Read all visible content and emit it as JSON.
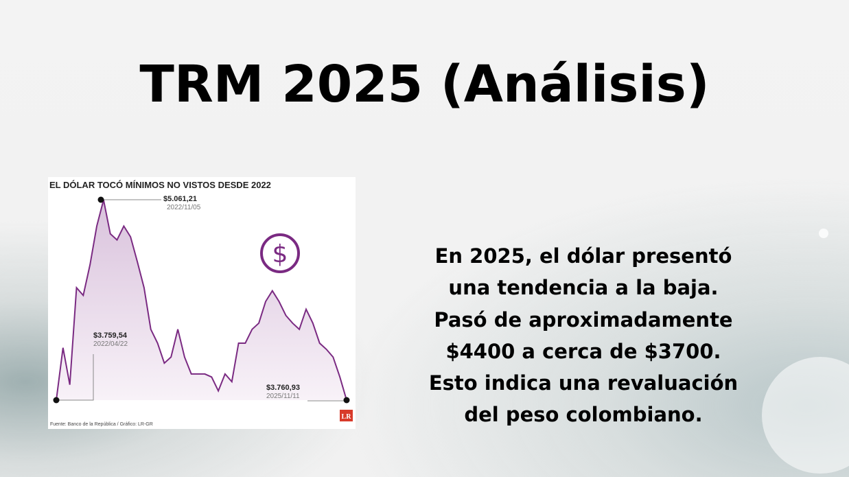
{
  "slide": {
    "title": "TRM 2025 (Análisis)",
    "body_lines": [
      "En 2025, el dólar presentó",
      "una tendencia a la baja.",
      "Pasó de aproximadamente",
      "$4400 a cerca de $3700.",
      "Esto indica una revaluación",
      "del peso colombiano."
    ]
  },
  "chart_data": {
    "type": "area",
    "title": "EL DÓLAR TOCÓ MÍNIMOS NO VISTOS DESDE 2022",
    "source": "Fuente: Banco de la República / Gráfico: LR-GR",
    "logo": "LR",
    "color": "#7a2a82",
    "grid": false,
    "ylim": [
      3700,
      5100
    ],
    "annotations": [
      {
        "value": "$3.759,54",
        "date": "2022/04/22",
        "x": "2022-04-22",
        "y": 3759.54
      },
      {
        "value": "$5.061,21",
        "date": "2022/11/05",
        "x": "2022-11-05",
        "y": 5061.21
      },
      {
        "value": "$3.760,93",
        "date": "2025/11/11",
        "x": "2025-11-11",
        "y": 3760.93
      }
    ],
    "x": [
      "2022-04",
      "2022-05",
      "2022-06",
      "2022-07",
      "2022-08",
      "2022-09",
      "2022-10",
      "2022-11",
      "2022-12",
      "2023-01",
      "2023-02",
      "2023-03",
      "2023-04",
      "2023-05",
      "2023-06",
      "2023-07",
      "2023-08",
      "2023-09",
      "2023-10",
      "2023-11",
      "2023-12",
      "2024-01",
      "2024-02",
      "2024-03",
      "2024-04",
      "2024-05",
      "2024-06",
      "2024-07",
      "2024-08",
      "2024-09",
      "2024-10",
      "2024-11",
      "2024-12",
      "2025-01",
      "2025-02",
      "2025-03",
      "2025-04",
      "2025-05",
      "2025-06",
      "2025-07",
      "2025-08",
      "2025-09",
      "2025-10",
      "2025-11"
    ],
    "y": [
      3760,
      4100,
      3860,
      4490,
      4440,
      4640,
      4890,
      5060,
      4840,
      4800,
      4890,
      4820,
      4660,
      4490,
      4220,
      4130,
      4000,
      4040,
      4220,
      4040,
      3930,
      3930,
      3930,
      3910,
      3820,
      3930,
      3880,
      4130,
      4130,
      4220,
      4260,
      4400,
      4470,
      4400,
      4310,
      4260,
      4220,
      4350,
      4260,
      4130,
      4090,
      4040,
      3910,
      3760
    ]
  }
}
